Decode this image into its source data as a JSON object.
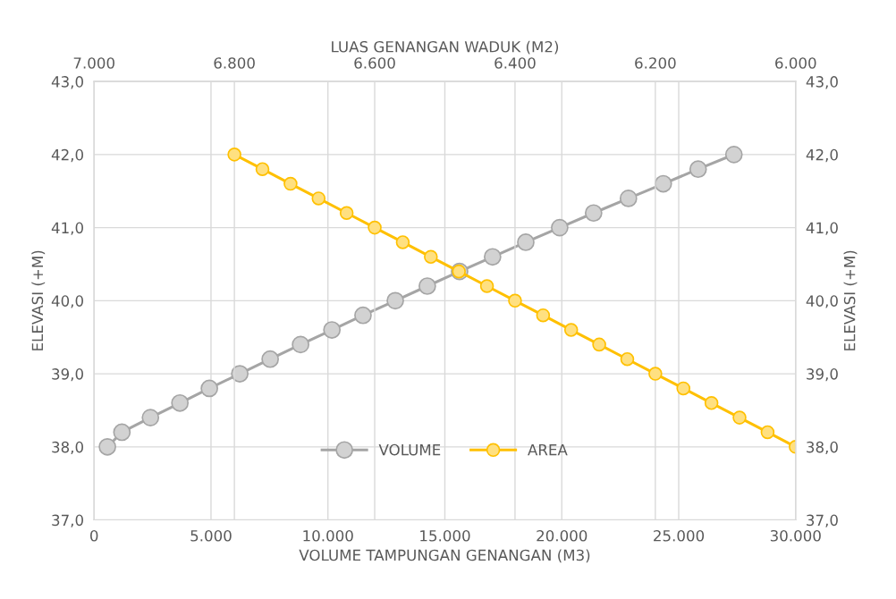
{
  "chart_data": {
    "type": "line",
    "xlabel": "VOLUME TAMPUNGAN GENANGAN (M3)",
    "x2label": "LUAS GENANGAN WADUK (M2)",
    "ylabel": "ELEVASI (+M)",
    "y2label": "ELEVASI (+M)",
    "xlim": [
      0,
      30000
    ],
    "xticks": [
      {
        "value": 0,
        "label": "0"
      },
      {
        "value": 5000,
        "label": "5.000"
      },
      {
        "value": 10000,
        "label": "10.000"
      },
      {
        "value": 15000,
        "label": "15.000"
      },
      {
        "value": 20000,
        "label": "20.000"
      },
      {
        "value": 25000,
        "label": "25.000"
      },
      {
        "value": 30000,
        "label": "30.000"
      }
    ],
    "x2lim": [
      7000,
      6000
    ],
    "x2ticks": [
      {
        "value": 7000,
        "label": "7.000"
      },
      {
        "value": 6800,
        "label": "6.800"
      },
      {
        "value": 6600,
        "label": "6.600"
      },
      {
        "value": 6400,
        "label": "6.400"
      },
      {
        "value": 6200,
        "label": "6.200"
      },
      {
        "value": 6000,
        "label": "6.000"
      }
    ],
    "ylim": [
      37,
      43
    ],
    "yticks": [
      {
        "value": 37,
        "label": "37,0"
      },
      {
        "value": 38,
        "label": "38,0"
      },
      {
        "value": 39,
        "label": "39,0"
      },
      {
        "value": 40,
        "label": "40,0"
      },
      {
        "value": 41,
        "label": "41,0"
      },
      {
        "value": 42,
        "label": "42,0"
      },
      {
        "value": 43,
        "label": "43,0"
      }
    ],
    "y2lim": [
      37,
      43
    ],
    "y2ticks": [
      {
        "value": 37,
        "label": "37,0"
      },
      {
        "value": 38,
        "label": "38,0"
      },
      {
        "value": 39,
        "label": "39,0"
      },
      {
        "value": 40,
        "label": "40,0"
      },
      {
        "value": 41,
        "label": "41,0"
      },
      {
        "value": 42,
        "label": "42,0"
      },
      {
        "value": 43,
        "label": "43,0"
      }
    ],
    "grid": true,
    "legend": "bottom",
    "marker": "circle",
    "line_style": "solid",
    "series": [
      {
        "name": "VOLUME",
        "color": "#a5a5a5",
        "x": [
          570,
          1190,
          2410,
          3670,
          4930,
          6230,
          7530,
          8830,
          10170,
          11500,
          12880,
          14250,
          15630,
          17040,
          18460,
          19910,
          21360,
          22850,
          24340,
          25830,
          27360
        ],
        "values": [
          38.0,
          38.2,
          38.4,
          38.6,
          38.8,
          39.0,
          39.2,
          39.4,
          39.6,
          39.8,
          40.0,
          40.2,
          40.4,
          40.6,
          40.8,
          41.0,
          41.2,
          41.4,
          41.6,
          41.8,
          42.0
        ]
      },
      {
        "name": "AREA",
        "color": "#ffc000",
        "axis": "x2",
        "x": [
          6800,
          6760,
          6720,
          6680,
          6640,
          6600,
          6560,
          6520,
          6480,
          6440,
          6400,
          6360,
          6320,
          6280,
          6240,
          6200,
          6160,
          6120,
          6080,
          6040,
          6000
        ],
        "values": [
          42.0,
          41.8,
          41.6,
          41.4,
          41.2,
          41.0,
          40.8,
          40.6,
          40.4,
          40.2,
          40.0,
          39.8,
          39.6,
          39.4,
          39.2,
          39.0,
          38.8,
          38.6,
          38.4,
          38.2,
          38.0
        ]
      }
    ]
  }
}
